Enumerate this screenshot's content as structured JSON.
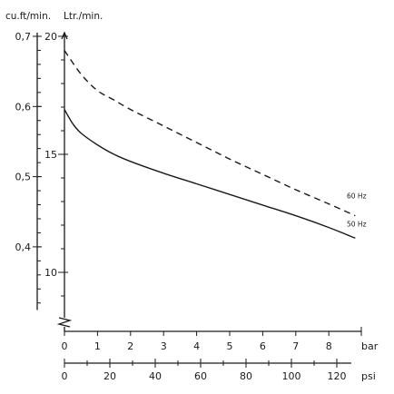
{
  "chart_data": {
    "type": "line",
    "axes": {
      "left_outer": {
        "label": "cu.ft/min.",
        "range": [
          0.31,
          0.72
        ],
        "major_ticks": [
          0.4,
          0.5,
          0.6,
          0.7
        ],
        "major_tick_labels": [
          "0,4",
          "0,5",
          "0,6",
          "0,7"
        ],
        "minor_step": 0.02
      },
      "left_inner": {
        "label": "Ltr./min.",
        "range": [
          8.8,
          20
        ],
        "major_ticks": [
          10,
          15,
          20
        ],
        "major_tick_labels": [
          "10",
          "15",
          "20"
        ],
        "minor_step": 1,
        "axis_break": true
      },
      "bottom_bar": {
        "unit": "bar",
        "range": [
          0,
          9
        ],
        "ticks": [
          0,
          1,
          2,
          3,
          4,
          5,
          6,
          7,
          8
        ],
        "tick_labels": [
          "0",
          "1",
          "2",
          "3",
          "4",
          "5",
          "6",
          "7",
          "8"
        ]
      },
      "bottom_psi": {
        "unit": "psi",
        "range": [
          0,
          130
        ],
        "ticks": [
          0,
          20,
          40,
          60,
          80,
          100,
          120
        ],
        "tick_labels": [
          "0",
          "20",
          "40",
          "60",
          "80",
          "100",
          "120"
        ],
        "minor_step": 10
      }
    },
    "series": [
      {
        "name": "60 Hz",
        "line_style": "dashed",
        "x_unit": "bar",
        "y_unit": "Ltr./min.",
        "x": [
          0,
          0.5,
          1,
          1.5,
          2,
          3,
          4,
          5,
          6,
          7,
          8,
          8.8
        ],
        "y": [
          19.4,
          18.4,
          17.7,
          17.3,
          16.9,
          16.2,
          15.5,
          14.8,
          14.15,
          13.5,
          12.9,
          12.4
        ]
      },
      {
        "name": "50 Hz",
        "line_style": "solid",
        "x_unit": "bar",
        "y_unit": "Ltr./min.",
        "x": [
          0,
          0.25,
          0.5,
          1,
          1.5,
          2,
          3,
          4,
          5,
          6,
          7,
          8,
          8.8
        ],
        "y": [
          16.9,
          16.3,
          15.9,
          15.4,
          15.0,
          14.7,
          14.2,
          13.75,
          13.3,
          12.85,
          12.4,
          11.9,
          11.45
        ]
      }
    ],
    "grid": false,
    "legend": "inline labels at right end of each curve"
  }
}
